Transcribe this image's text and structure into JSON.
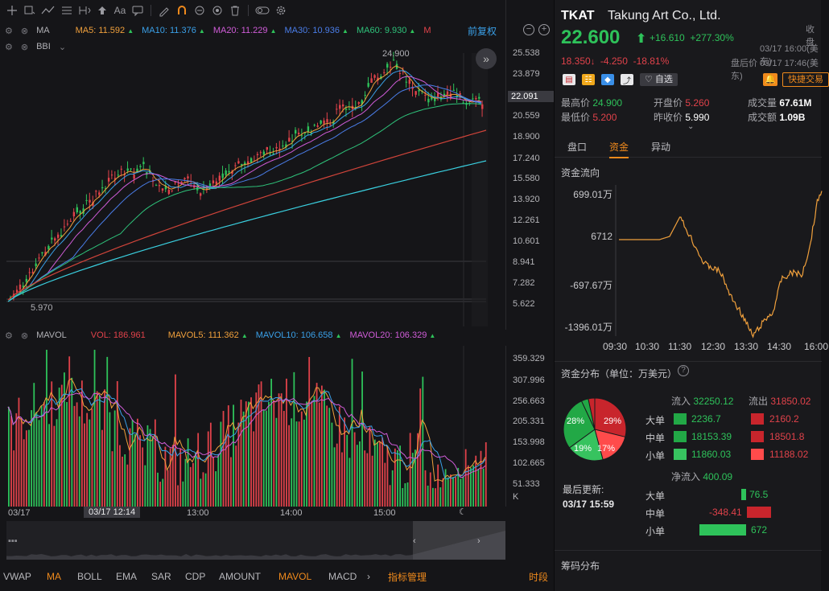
{
  "toolbar": {
    "font_btn": "Aa",
    "icons": [
      "crosshair-icon",
      "rect-icon",
      "trend-icon",
      "grid-icon",
      "fibonacci-icon",
      "arrow-up-icon",
      "text-icon",
      "comment-icon",
      "pen-icon",
      "magnet-icon",
      "lock-icon",
      "eye-icon",
      "trash-icon",
      "toggle-icon",
      "gear-icon"
    ]
  },
  "ma_row": {
    "name": "MA",
    "ma5": "MA5: 11.592",
    "ma10": "MA10: 11.376",
    "ma20": "MA20: 11.229",
    "ma30": "MA30: 10.936",
    "ma60": "MA60: 9.930",
    "m": "M",
    "adj": "前复权",
    "colors": {
      "ma5": "#f0a03c",
      "ma10": "#3aa0e8",
      "ma20": "#d05cd8",
      "ma30": "#4a7de8",
      "ma60": "#2ec27a"
    }
  },
  "bbi_row": {
    "name": "BBI"
  },
  "price_axis": [
    "25.538",
    "23.879",
    "22.091",
    "20.559",
    "18.900",
    "17.240",
    "15.580",
    "13.920",
    "12.261",
    "10.601",
    "8.941",
    "7.282",
    "5.622"
  ],
  "price_marks": {
    "high": "24.900",
    "low": "5.970",
    "current": "22.091"
  },
  "vol_row": {
    "name": "MAVOL",
    "vol": "VOL: 186.961",
    "mavol5": "MAVOL5: 111.362",
    "mavol10": "MAVOL10: 106.658",
    "mavol20": "MAVOL20: 106.329"
  },
  "vol_axis": [
    "359.329",
    "307.996",
    "256.663",
    "205.331",
    "153.998",
    "102.665",
    "51.333",
    "K"
  ],
  "time_axis": [
    "03/17",
    "03/17 12:14",
    "13:00",
    "14:00",
    "15:00"
  ],
  "bottom_tabs": [
    "VWAP",
    "MA",
    "BOLL",
    "EMA",
    "SAR",
    "CDP",
    "AMOUNT",
    "MAVOL",
    "MACD"
  ],
  "bottom_active": [
    "MA",
    "MAVOL"
  ],
  "bottom_manage": "指标管理",
  "bottom_timeshare": "时段",
  "quote": {
    "ticker": "TKAT",
    "name": "Takung Art Co., Ltd.",
    "closed": "收盘",
    "price": "22.600",
    "change": "+16.610",
    "change_pct": "+277.30%",
    "close_time": "03/17 16:00(美东)",
    "ah_price": "18.350",
    "ah_change": "-4.250",
    "ah_pct": "-18.81%",
    "ah_time": "盘后价 03/17 17:46(美东)",
    "watch": "自选",
    "quick_trade": "快捷交易",
    "high_lbl": "最高价",
    "high": "24.900",
    "open_lbl": "开盘价",
    "open": "5.260",
    "vol_lbl": "成交量",
    "vol": "67.61M",
    "low_lbl": "最低价",
    "low": "5.200",
    "prev_lbl": "昨收价",
    "prev": "5.990",
    "amt_lbl": "成交额",
    "amt": "1.09B"
  },
  "subtabs": [
    "盘口",
    "资金",
    "异动"
  ],
  "subtab_active": "资金",
  "fund_flow": {
    "title": "资金流向",
    "y_labels": [
      "699.01万",
      "6712",
      "-697.67万",
      "-1396.01万"
    ],
    "x_labels": [
      "09:30",
      "10:30",
      "11:30",
      "12:30",
      "13:30",
      "14:30",
      "16:00"
    ]
  },
  "distribution": {
    "title": "资金分布（单位：万美元）",
    "pie": [
      {
        "label": "28%",
        "pct": 28,
        "color": "#22a846"
      },
      {
        "label": "19%",
        "pct": 19,
        "color": "#37c35f"
      },
      {
        "label": "17%",
        "pct": 17,
        "color": "#ff4b4b"
      },
      {
        "label": "29%",
        "pct": 29,
        "color": "#c8252c"
      }
    ],
    "updated_lbl": "最后更新:",
    "updated": "03/17 15:59",
    "in_lbl": "流入",
    "in_val": "32250.12",
    "out_lbl": "流出",
    "out_val": "31850.02",
    "rows": [
      {
        "label": "大单",
        "in": "2236.7",
        "out": "2160.2"
      },
      {
        "label": "中单",
        "in": "18153.39",
        "out": "18501.8"
      },
      {
        "label": "小单",
        "in": "11860.03",
        "out": "11188.02"
      }
    ],
    "net_lbl": "净流入",
    "net_val": "400.09",
    "net_rows": [
      {
        "label": "大单",
        "value": "76.5"
      },
      {
        "label": "中单",
        "value": "-348.41"
      },
      {
        "label": "小单",
        "value": "672"
      }
    ]
  },
  "chip": {
    "title": "筹码分布"
  }
}
